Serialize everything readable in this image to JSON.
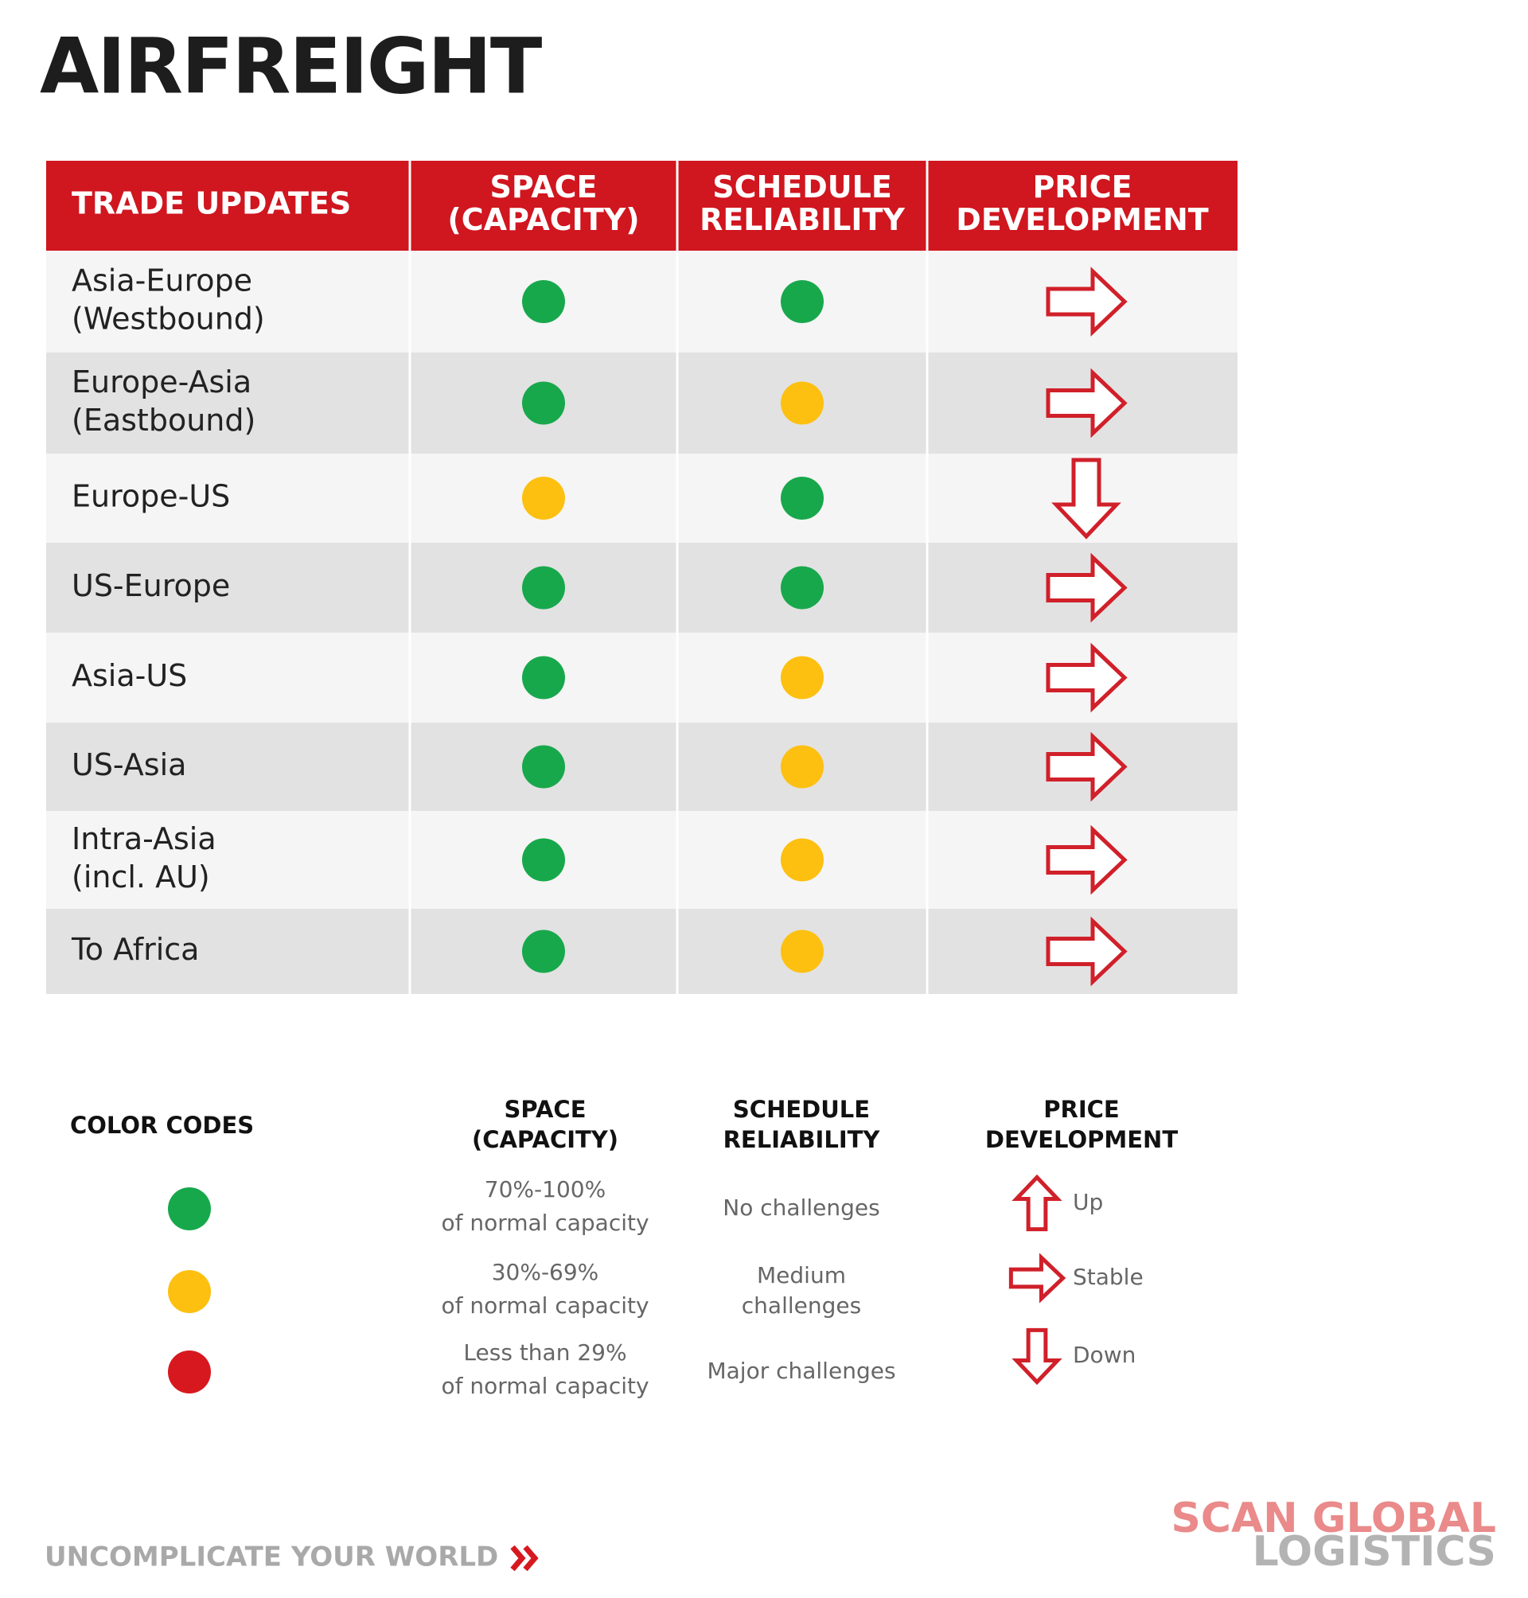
{
  "title": "AIRFREIGHT",
  "table": {
    "header": [
      [
        "TRADE UPDATES"
      ],
      [
        "SPACE",
        "(CAPACITY)"
      ],
      [
        "SCHEDULE",
        "RELIABILITY"
      ],
      [
        "PRICE",
        "DEVELOPMENT"
      ]
    ],
    "rows": [
      {
        "trade": [
          "Asia-Europe",
          "(Westbound)"
        ],
        "space": "#18a84c",
        "schedule": "#18a84c",
        "price": "right"
      },
      {
        "trade": [
          "Europe-Asia",
          "(Eastbound)"
        ],
        "space": "#18a84c",
        "schedule": "#fdc010",
        "price": "right"
      },
      {
        "trade": [
          "Europe-US"
        ],
        "space": "#fdc010",
        "schedule": "#18a84c",
        "price": "down"
      },
      {
        "trade": [
          "US-Europe"
        ],
        "space": "#18a84c",
        "schedule": "#18a84c",
        "price": "right"
      },
      {
        "trade": [
          "Asia-US"
        ],
        "space": "#18a84c",
        "schedule": "#fdc010",
        "price": "right"
      },
      {
        "trade": [
          "US-Asia"
        ],
        "space": "#18a84c",
        "schedule": "#fdc010",
        "price": "right"
      },
      {
        "trade": [
          "Intra-Asia",
          "(incl. AU)"
        ],
        "space": "#18a84c",
        "schedule": "#fdc010",
        "price": "right"
      },
      {
        "trade": [
          "To Africa"
        ],
        "space": "#18a84c",
        "schedule": "#fdc010",
        "price": "right"
      }
    ]
  },
  "legend": {
    "title": "COLOR CODES",
    "header": [
      [
        "SPACE",
        "(CAPACITY)"
      ],
      [
        "SCHEDULE",
        "RELIABILITY"
      ],
      [
        "PRICE",
        "DEVELOPMENT"
      ]
    ],
    "codes": [
      {
        "color": "#18a84c",
        "capacity": [
          "70%-100%",
          "of normal capacity"
        ],
        "schedule": [
          "No challenges"
        ]
      },
      {
        "color": "#fdc010",
        "capacity": [
          "30%-69%",
          "of normal capacity"
        ],
        "schedule": [
          "Medium",
          "challenges"
        ]
      },
      {
        "color": "#d7191f",
        "capacity": [
          "Less than 29%",
          "of normal capacity"
        ],
        "schedule": [
          "Major challenges"
        ]
      }
    ],
    "price": [
      {
        "direction": "up",
        "label": "Up"
      },
      {
        "direction": "right",
        "label": "Stable"
      },
      {
        "direction": "down",
        "label": "Down"
      }
    ]
  },
  "footer": {
    "tagline": "UNCOMPLICATE YOUR WORLD",
    "logo": [
      "SCAN GLOBAL",
      "LOGISTICS"
    ]
  }
}
